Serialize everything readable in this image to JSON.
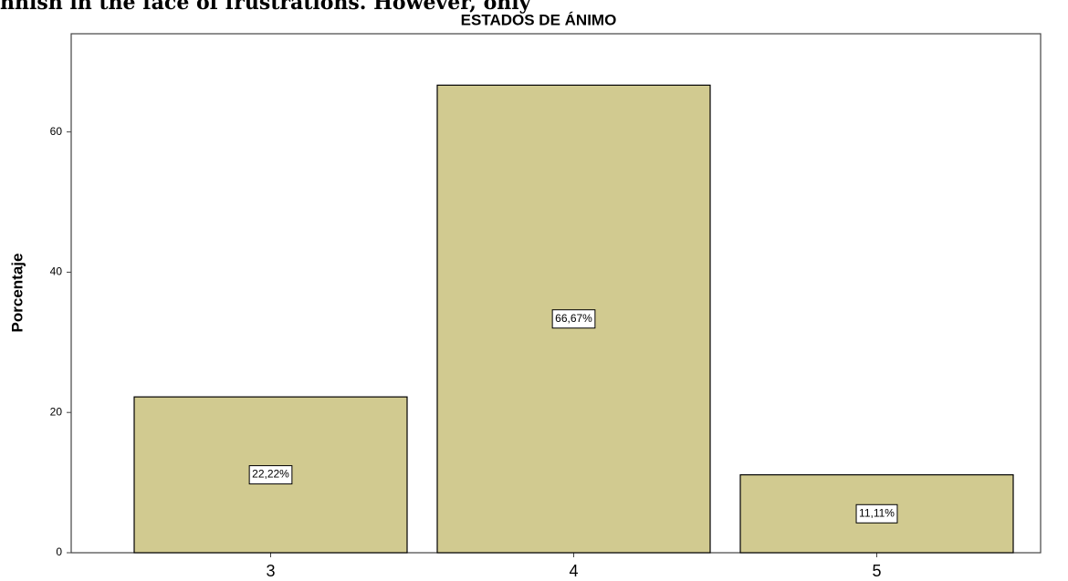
{
  "chart_data": {
    "type": "bar",
    "title": "ESTADOS DE ÁNIMO",
    "annotation": "nhish in the face of frustrations. However, only",
    "ylabel": "Porcentaje",
    "categories": [
      "3",
      "4",
      "5"
    ],
    "values": [
      22.22,
      66.67,
      11.11
    ],
    "value_labels": [
      "22,22%",
      "66,67%",
      "11,11%"
    ],
    "color": "#d1ca90",
    "ylim": [
      0,
      74
    ],
    "yticks": [
      0,
      20,
      40,
      60
    ],
    "grid": false
  }
}
